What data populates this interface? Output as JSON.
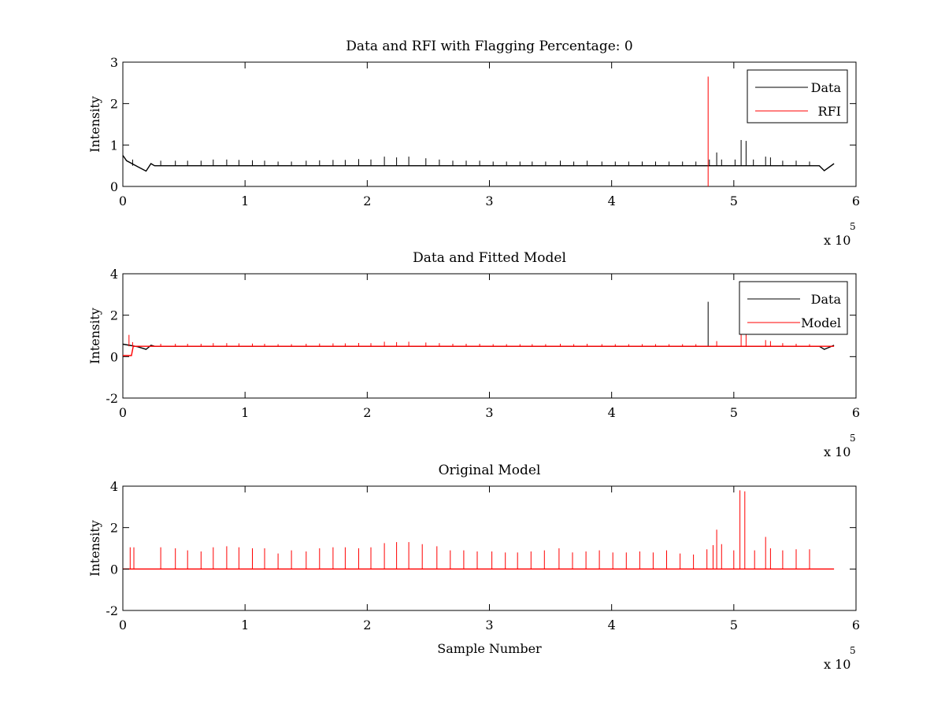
{
  "figure": {
    "background": "#ffffff"
  },
  "colors": {
    "data": "#000000",
    "rfi": "#ff0000",
    "model": "#ff0000",
    "axes": "#000000"
  },
  "chart_data": [
    {
      "type": "line",
      "title": "Data and RFI with Flagging Percentage: 0",
      "xlabel": "",
      "ylabel": "Intensity",
      "xlim": [
        0,
        600000
      ],
      "ylim": [
        0,
        3
      ],
      "x_ticks": [
        "0",
        "1",
        "2",
        "3",
        "4",
        "5",
        "6"
      ],
      "y_ticks": [
        "0",
        "1",
        "2",
        "3"
      ],
      "x_multiplier": {
        "base": "x 10",
        "exponent": "5"
      },
      "grid": false,
      "legend": {
        "position": "top-right",
        "entries": [
          "Data",
          "RFI"
        ]
      },
      "series": [
        {
          "name": "Data",
          "color": "#000000",
          "baseline": 0.5,
          "dips": [
            {
              "x": 0,
              "y": 0.75
            },
            {
              "x": 3000,
              "y": 0.62
            },
            {
              "x": 12000,
              "y": 0.48
            },
            {
              "x": 19000,
              "y": 0.37
            },
            {
              "x": 23000,
              "y": 0.55
            },
            {
              "x": 574000,
              "y": 0.38
            },
            {
              "x": 582000,
              "y": 0.55
            }
          ],
          "spikes": [
            [
              8000,
              0.65
            ],
            [
              31000,
              0.62
            ],
            [
              43000,
              0.62
            ],
            [
              53000,
              0.62
            ],
            [
              64000,
              0.62
            ],
            [
              74000,
              0.65
            ],
            [
              85000,
              0.65
            ],
            [
              95000,
              0.64
            ],
            [
              106000,
              0.63
            ],
            [
              116000,
              0.62
            ],
            [
              127000,
              0.6
            ],
            [
              138000,
              0.6
            ],
            [
              150000,
              0.62
            ],
            [
              161000,
              0.63
            ],
            [
              172000,
              0.64
            ],
            [
              182000,
              0.64
            ],
            [
              193000,
              0.66
            ],
            [
              203000,
              0.65
            ],
            [
              214000,
              0.72
            ],
            [
              224000,
              0.7
            ],
            [
              234000,
              0.72
            ],
            [
              248000,
              0.68
            ],
            [
              259000,
              0.65
            ],
            [
              270000,
              0.62
            ],
            [
              281000,
              0.62
            ],
            [
              292000,
              0.62
            ],
            [
              303000,
              0.6
            ],
            [
              314000,
              0.6
            ],
            [
              325000,
              0.6
            ],
            [
              335000,
              0.6
            ],
            [
              346000,
              0.6
            ],
            [
              358000,
              0.62
            ],
            [
              369000,
              0.6
            ],
            [
              380000,
              0.62
            ],
            [
              392000,
              0.6
            ],
            [
              403000,
              0.6
            ],
            [
              414000,
              0.6
            ],
            [
              425000,
              0.6
            ],
            [
              436000,
              0.6
            ],
            [
              447000,
              0.6
            ],
            [
              458000,
              0.6
            ],
            [
              469000,
              0.6
            ],
            [
              480000,
              0.65
            ],
            [
              486000,
              0.82
            ],
            [
              490000,
              0.65
            ],
            [
              501000,
              0.65
            ],
            [
              506000,
              1.12
            ],
            [
              510000,
              1.1
            ],
            [
              516000,
              0.65
            ],
            [
              526000,
              0.72
            ],
            [
              530000,
              0.7
            ],
            [
              540000,
              0.62
            ],
            [
              551000,
              0.62
            ],
            [
              562000,
              0.6
            ]
          ]
        },
        {
          "name": "RFI",
          "color": "#ff0000",
          "spikes": [
            [
              479000,
              2.65
            ]
          ]
        }
      ]
    },
    {
      "type": "line",
      "title": "Data and Fitted Model",
      "xlabel": "",
      "ylabel": "Intensity",
      "xlim": [
        0,
        600000
      ],
      "ylim": [
        -2,
        4
      ],
      "x_ticks": [
        "0",
        "1",
        "2",
        "3",
        "4",
        "5",
        "6"
      ],
      "y_ticks": [
        "-2",
        "0",
        "2",
        "4"
      ],
      "x_multiplier": {
        "base": "x 10",
        "exponent": "5"
      },
      "grid": false,
      "legend": {
        "position": "top-right",
        "entries": [
          "Data",
          "Model"
        ]
      },
      "series": [
        {
          "name": "Data",
          "color": "#000000",
          "baseline": 0.5,
          "dips": [
            {
              "x": 0,
              "y": 0.6
            },
            {
              "x": 12000,
              "y": 0.48
            },
            {
              "x": 19000,
              "y": 0.35
            },
            {
              "x": 23000,
              "y": 0.55
            },
            {
              "x": 574000,
              "y": 0.35
            },
            {
              "x": 582000,
              "y": 0.55
            }
          ],
          "spikes": [
            [
              479000,
              2.65
            ]
          ]
        },
        {
          "name": "Model",
          "color": "#ff0000",
          "baseline": 0.5,
          "dips": [
            {
              "x": 0,
              "y": 0.05
            },
            {
              "x": 7000,
              "y": 0.05
            },
            {
              "x": 8500,
              "y": 0.5
            }
          ],
          "spikes": [
            [
              5000,
              1.05
            ],
            [
              8000,
              0.7
            ],
            [
              31000,
              0.62
            ],
            [
              43000,
              0.62
            ],
            [
              53000,
              0.62
            ],
            [
              64000,
              0.62
            ],
            [
              74000,
              0.65
            ],
            [
              85000,
              0.65
            ],
            [
              95000,
              0.64
            ],
            [
              106000,
              0.63
            ],
            [
              116000,
              0.62
            ],
            [
              127000,
              0.6
            ],
            [
              138000,
              0.6
            ],
            [
              150000,
              0.62
            ],
            [
              161000,
              0.63
            ],
            [
              172000,
              0.64
            ],
            [
              182000,
              0.64
            ],
            [
              193000,
              0.66
            ],
            [
              203000,
              0.65
            ],
            [
              214000,
              0.72
            ],
            [
              224000,
              0.7
            ],
            [
              234000,
              0.72
            ],
            [
              248000,
              0.68
            ],
            [
              259000,
              0.65
            ],
            [
              270000,
              0.62
            ],
            [
              281000,
              0.62
            ],
            [
              292000,
              0.62
            ],
            [
              303000,
              0.6
            ],
            [
              314000,
              0.6
            ],
            [
              325000,
              0.6
            ],
            [
              335000,
              0.6
            ],
            [
              346000,
              0.6
            ],
            [
              358000,
              0.62
            ],
            [
              369000,
              0.6
            ],
            [
              380000,
              0.62
            ],
            [
              392000,
              0.6
            ],
            [
              403000,
              0.6
            ],
            [
              414000,
              0.6
            ],
            [
              425000,
              0.6
            ],
            [
              436000,
              0.6
            ],
            [
              447000,
              0.6
            ],
            [
              458000,
              0.6
            ],
            [
              469000,
              0.6
            ],
            [
              486000,
              0.75
            ],
            [
              506000,
              1.3
            ],
            [
              510000,
              1.25
            ],
            [
              526000,
              0.8
            ],
            [
              530000,
              0.75
            ],
            [
              540000,
              0.65
            ],
            [
              551000,
              0.62
            ],
            [
              562000,
              0.6
            ]
          ]
        }
      ]
    },
    {
      "type": "line",
      "title": "Original Model",
      "xlabel": "Sample Number",
      "ylabel": "Intensity",
      "xlim": [
        0,
        600000
      ],
      "ylim": [
        -2,
        4
      ],
      "x_ticks": [
        "0",
        "1",
        "2",
        "3",
        "4",
        "5",
        "6"
      ],
      "y_ticks": [
        "-2",
        "0",
        "2",
        "4"
      ],
      "x_multiplier": {
        "base": "x 10",
        "exponent": "5"
      },
      "grid": false,
      "legend": null,
      "series": [
        {
          "name": "",
          "color": "#ff0000",
          "baseline": 0,
          "x_end": 582000,
          "spikes": [
            [
              6000,
              1.05
            ],
            [
              9000,
              1.05
            ],
            [
              31000,
              1.05
            ],
            [
              43000,
              1.0
            ],
            [
              53000,
              0.9
            ],
            [
              64000,
              0.85
            ],
            [
              74000,
              1.05
            ],
            [
              85000,
              1.1
            ],
            [
              95000,
              1.05
            ],
            [
              106000,
              1.0
            ],
            [
              116000,
              1.0
            ],
            [
              127000,
              0.75
            ],
            [
              138000,
              0.9
            ],
            [
              150000,
              0.85
            ],
            [
              161000,
              1.0
            ],
            [
              172000,
              1.05
            ],
            [
              182000,
              1.05
            ],
            [
              193000,
              1.0
            ],
            [
              203000,
              1.05
            ],
            [
              214000,
              1.25
            ],
            [
              224000,
              1.3
            ],
            [
              234000,
              1.3
            ],
            [
              245000,
              1.2
            ],
            [
              257000,
              1.1
            ],
            [
              268000,
              0.9
            ],
            [
              279000,
              0.9
            ],
            [
              290000,
              0.85
            ],
            [
              302000,
              0.85
            ],
            [
              313000,
              0.8
            ],
            [
              323000,
              0.8
            ],
            [
              334000,
              0.85
            ],
            [
              345000,
              0.9
            ],
            [
              357000,
              1.0
            ],
            [
              368000,
              0.8
            ],
            [
              379000,
              0.85
            ],
            [
              390000,
              0.9
            ],
            [
              401000,
              0.8
            ],
            [
              412000,
              0.8
            ],
            [
              423000,
              0.85
            ],
            [
              434000,
              0.8
            ],
            [
              445000,
              0.9
            ],
            [
              456000,
              0.75
            ],
            [
              467000,
              0.7
            ],
            [
              478000,
              0.95
            ],
            [
              483000,
              1.15
            ],
            [
              486000,
              1.9
            ],
            [
              490000,
              1.2
            ],
            [
              500000,
              0.9
            ],
            [
              505000,
              3.8
            ],
            [
              509000,
              3.75
            ],
            [
              517000,
              0.9
            ],
            [
              526000,
              1.55
            ],
            [
              530000,
              1.0
            ],
            [
              540000,
              0.9
            ],
            [
              551000,
              0.95
            ],
            [
              562000,
              0.95
            ]
          ]
        }
      ]
    }
  ]
}
